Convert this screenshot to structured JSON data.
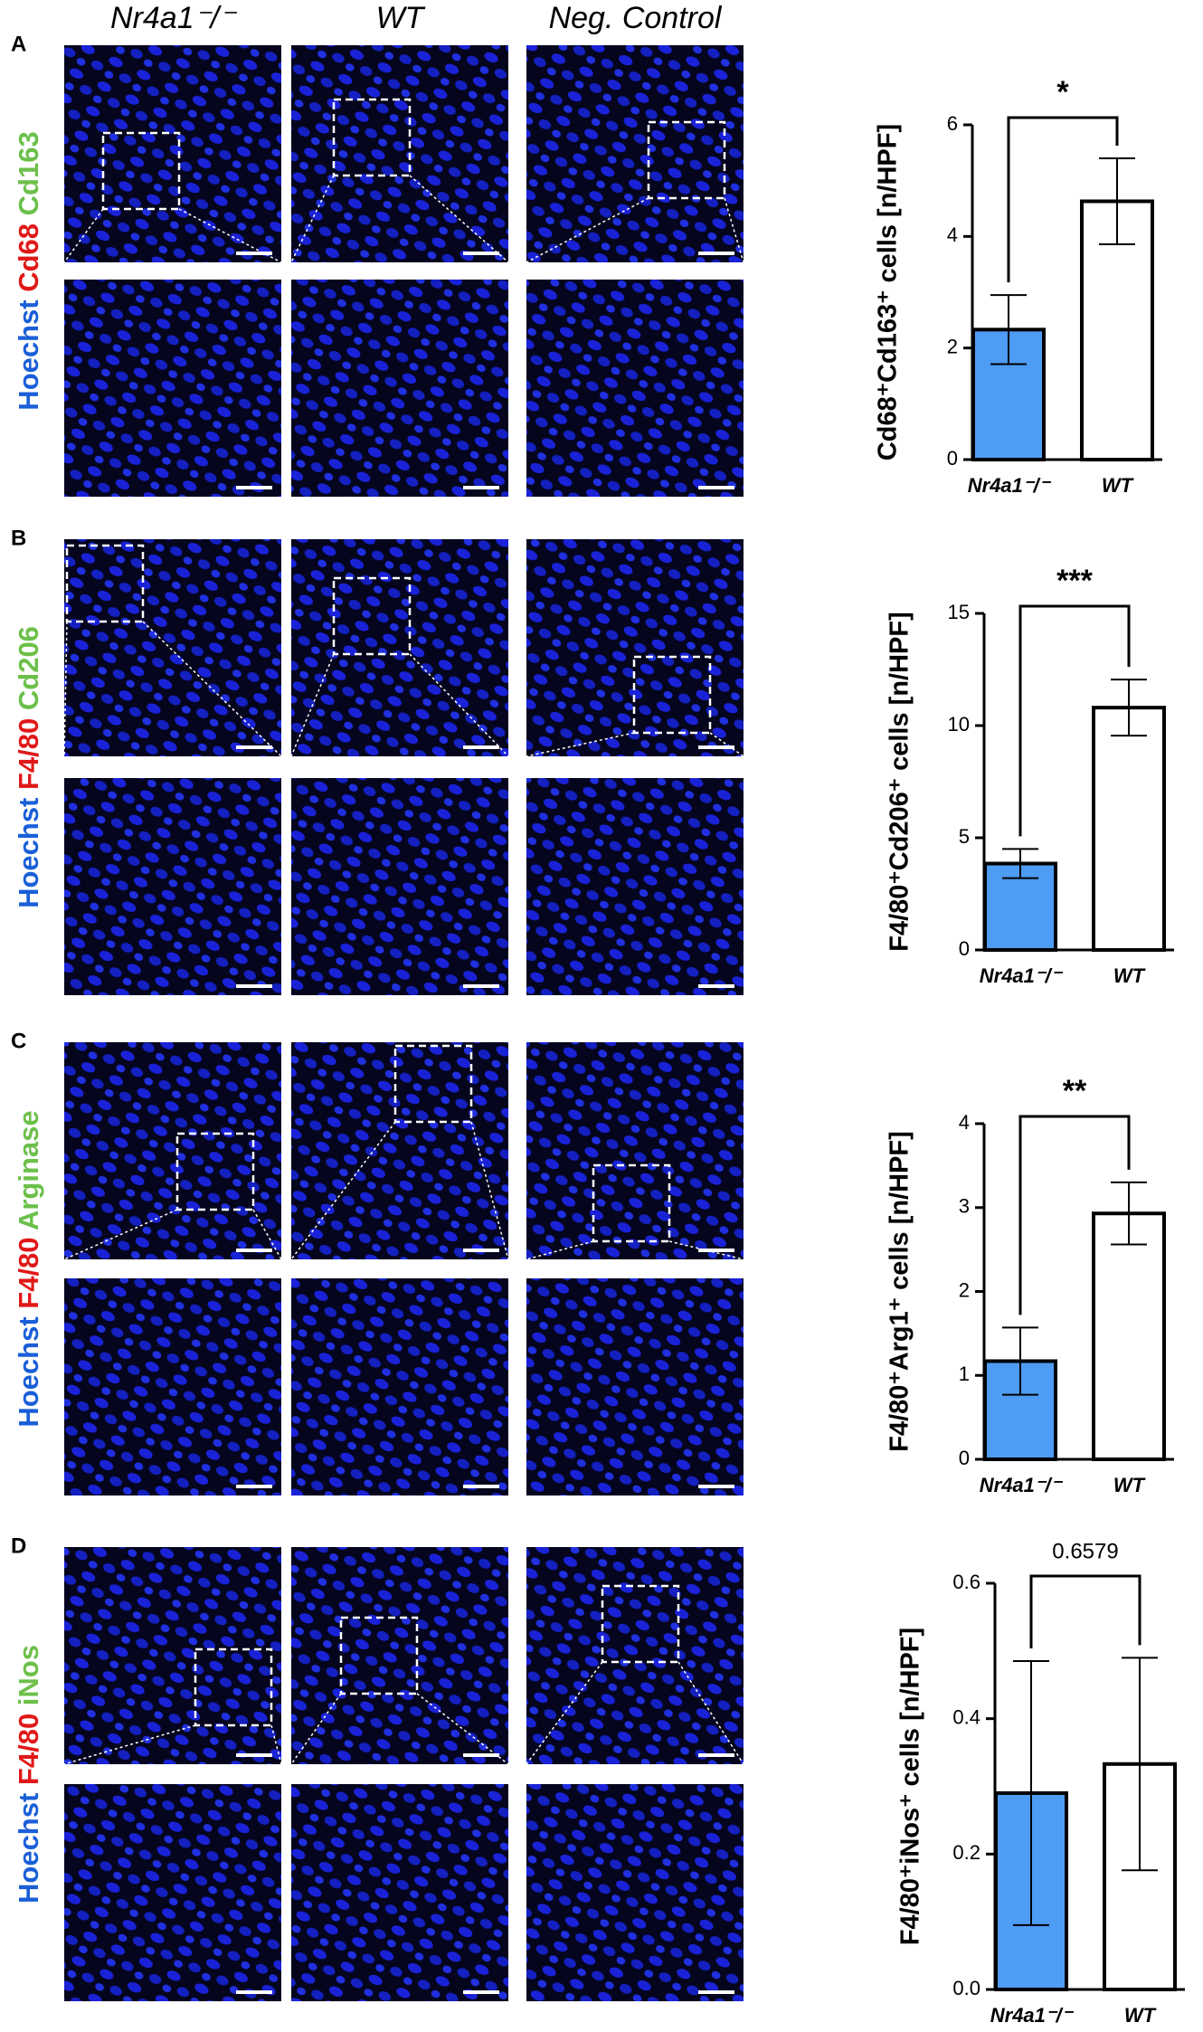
{
  "figure": {
    "columns": [
      "Nr4a1⁻/⁻",
      "WT",
      "Neg. Control"
    ],
    "panels": [
      {
        "letter": "A",
        "stains": [
          "Hoechst",
          "Cd68",
          "Cd163"
        ]
      },
      {
        "letter": "B",
        "stains": [
          "Hoechst",
          "F4/80",
          "Cd206"
        ]
      },
      {
        "letter": "C",
        "stains": [
          "Hoechst",
          "F4/80",
          "Arginase"
        ]
      },
      {
        "letter": "D",
        "stains": [
          "Hoechst",
          "F4/80",
          "iNos"
        ]
      }
    ]
  },
  "chart_data": [
    {
      "type": "bar",
      "y_label": "Cd68⁺Cd163⁺ cells [n/HPF]",
      "categories": [
        "Nr4a1⁻/⁻",
        "WT"
      ],
      "values": [
        2.33,
        4.63
      ],
      "errors": [
        0.62,
        0.77
      ],
      "colors": [
        "#4f9cf5",
        "#ffffff"
      ],
      "ylim": [
        0,
        6
      ],
      "yticks": [
        0,
        2,
        4,
        6
      ],
      "significance": "*"
    },
    {
      "type": "bar",
      "y_label": "F4/80⁺Cd206⁺ cells [n/HPF]",
      "categories": [
        "Nr4a1⁻/⁻",
        "WT"
      ],
      "values": [
        3.85,
        10.8
      ],
      "errors": [
        0.65,
        1.25
      ],
      "colors": [
        "#4f9cf5",
        "#ffffff"
      ],
      "ylim": [
        0,
        15
      ],
      "yticks": [
        0,
        5,
        10,
        15
      ],
      "significance": "***"
    },
    {
      "type": "bar",
      "y_label": "F4/80⁺Arg1⁺ cells [n/HPF]",
      "categories": [
        "Nr4a1⁻/⁻",
        "WT"
      ],
      "values": [
        1.17,
        2.93
      ],
      "errors": [
        0.4,
        0.37
      ],
      "colors": [
        "#4f9cf5",
        "#ffffff"
      ],
      "ylim": [
        0,
        4
      ],
      "yticks": [
        0,
        1,
        2,
        3,
        4
      ],
      "significance": "**"
    },
    {
      "type": "bar",
      "y_label": "F4/80⁺iNos⁺ cells [n/HPF]",
      "categories": [
        "Nr4a1⁻/⁻",
        "WT"
      ],
      "values": [
        0.29,
        0.333
      ],
      "errors": [
        0.195,
        0.157
      ],
      "colors": [
        "#4f9cf5",
        "#ffffff"
      ],
      "ylim": [
        0,
        0.6
      ],
      "yticks": [
        {
          "value": 0,
          "label": "0.0"
        },
        0.2,
        0.4,
        0.6
      ],
      "significance": "0.6579"
    }
  ]
}
